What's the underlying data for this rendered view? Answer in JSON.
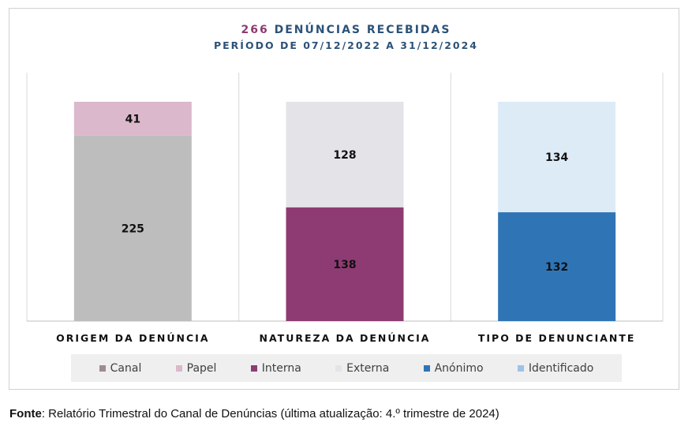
{
  "chart_data": {
    "type": "bar",
    "stacked": true,
    "title_number": "266",
    "title_text": "DENÚNCIAS RECEBIDAS",
    "subtitle": "PERÍODO DE 07/12/2022 A 31/12/2024",
    "categories": [
      "ORIGEM DA DENÚNCIA",
      "NATUREZA DA DENÚNCIA",
      "TIPO DE DENUNCIANTE"
    ],
    "stacks": [
      [
        {
          "name": "Canal",
          "value": 225,
          "color": "#bdbdbd"
        },
        {
          "name": "Papel",
          "value": 41,
          "color": "#dbb8cb"
        }
      ],
      [
        {
          "name": "Interna",
          "value": 138,
          "color": "#8e3b73"
        },
        {
          "name": "Externa",
          "value": 128,
          "color": "#e4e3e8"
        }
      ],
      [
        {
          "name": "Anónimo",
          "value": 132,
          "color": "#2f75b5"
        },
        {
          "name": "Identificado",
          "value": 134,
          "color": "#ddebf7"
        }
      ]
    ],
    "ylim": [
      0,
      300
    ],
    "legend_position": "bottom",
    "legend": [
      {
        "name": "Canal",
        "color": "#9e8a95"
      },
      {
        "name": "Papel",
        "color": "#dbb8cb"
      },
      {
        "name": "Interna",
        "color": "#8e3b73"
      },
      {
        "name": "Externa",
        "color": "#e4e3e8"
      },
      {
        "name": "Anónimo",
        "color": "#2f75b5"
      },
      {
        "name": "Identificado",
        "color": "#9dc3e6"
      }
    ],
    "grid": false
  },
  "source": {
    "label": "Fonte",
    "text": ": Relatório Trimestral do Canal de Denúncias (última atualização: 4.º trimestre de 2024)"
  }
}
